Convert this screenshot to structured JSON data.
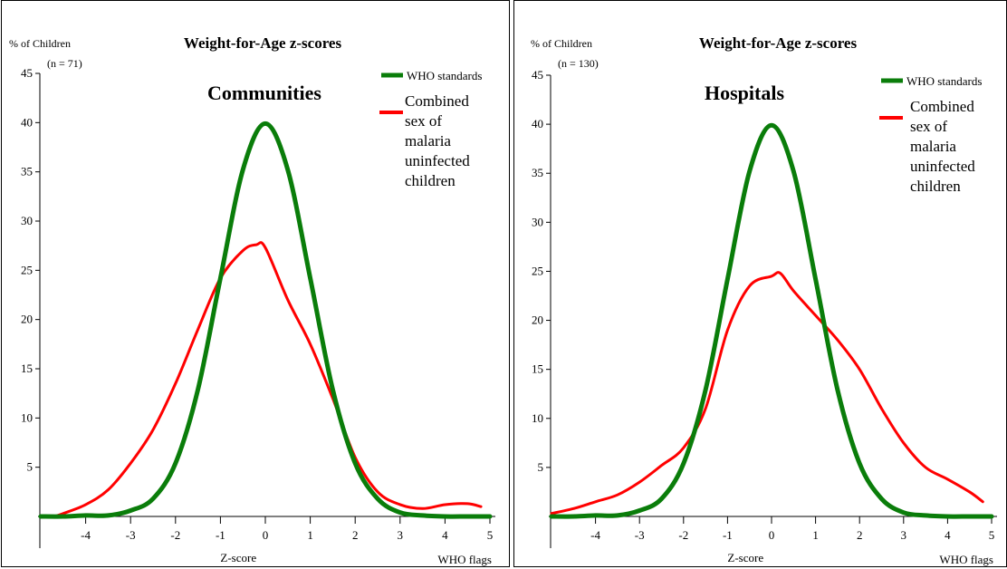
{
  "chart_data": [
    {
      "type": "line",
      "title": "Weight-for-Age z-scores",
      "panel_label": "Communities",
      "y_header": "% of Children",
      "n_label": "(n = 71)",
      "xlabel": "Z-score",
      "x_right_label": "WHO flags",
      "xlim": [
        -5,
        5
      ],
      "ylim": [
        0,
        45
      ],
      "x_ticks": [
        "-4",
        "-3",
        "-2",
        "-1",
        "0",
        "1",
        "2",
        "3",
        "4",
        "5"
      ],
      "y_ticks": [
        "5",
        "10",
        "15",
        "20",
        "25",
        "30",
        "35",
        "40",
        "45"
      ],
      "colors": {
        "who": "#0a7d0a",
        "sample": "#ff0000"
      },
      "legend": {
        "who_label": "WHO standards",
        "sample_label": "Combined sex of malaria uninfected children"
      },
      "series": [
        {
          "name": "WHO standards",
          "x": [
            -5,
            -4.5,
            -4,
            -3.5,
            -3,
            -2.5,
            -2,
            -1.5,
            -1,
            -0.5,
            0,
            0.5,
            1,
            1.5,
            2,
            2.5,
            3,
            3.5,
            4,
            4.5,
            5
          ],
          "y": [
            0,
            0,
            0.1,
            0.1,
            0.6,
            1.8,
            5.4,
            12.9,
            24.2,
            35.2,
            39.9,
            35.2,
            24.2,
            12.9,
            5.4,
            1.8,
            0.4,
            0.1,
            0,
            0,
            0
          ]
        },
        {
          "name": "Combined sex of malaria uninfected children",
          "x": [
            -4.7,
            -4.5,
            -4,
            -3.5,
            -3,
            -2.5,
            -2,
            -1.5,
            -1,
            -0.5,
            -0.2,
            0,
            0.5,
            1,
            1.5,
            2,
            2.5,
            3,
            3.5,
            4,
            4.5,
            4.8
          ],
          "y": [
            0,
            0.3,
            1.2,
            2.7,
            5.4,
            8.8,
            13.5,
            19.0,
            24.2,
            27.0,
            27.6,
            27.3,
            22.0,
            17.5,
            12.0,
            6.0,
            2.5,
            1.2,
            0.8,
            1.2,
            1.3,
            1.0
          ]
        }
      ]
    },
    {
      "type": "line",
      "title": "Weight-for-Age z-scores",
      "panel_label": "Hospitals",
      "y_header": "% of Children",
      "n_label": "(n = 130)",
      "xlabel": "Z-score",
      "x_right_label": "WHO flags",
      "xlim": [
        -5,
        5
      ],
      "ylim": [
        0,
        45
      ],
      "x_ticks": [
        "-4",
        "-3",
        "-2",
        "-1",
        "0",
        "1",
        "2",
        "3",
        "4",
        "5"
      ],
      "y_ticks": [
        "5",
        "10",
        "15",
        "20",
        "25",
        "30",
        "35",
        "40",
        "45"
      ],
      "colors": {
        "who": "#0a7d0a",
        "sample": "#ff0000"
      },
      "legend": {
        "who_label": "WHO standards",
        "sample_label": "Combined sex of malaria uninfected children"
      },
      "series": [
        {
          "name": "WHO standards",
          "x": [
            -5,
            -4.5,
            -4,
            -3.5,
            -3,
            -2.5,
            -2,
            -1.5,
            -1,
            -0.5,
            0,
            0.5,
            1,
            1.5,
            2,
            2.5,
            3,
            3.5,
            4,
            4.5,
            5
          ],
          "y": [
            0,
            0,
            0.1,
            0.1,
            0.6,
            1.8,
            5.4,
            12.9,
            24.2,
            35.2,
            39.9,
            35.2,
            24.2,
            12.9,
            5.4,
            1.8,
            0.4,
            0.1,
            0,
            0,
            0
          ]
        },
        {
          "name": "Combined sex of malaria uninfected children",
          "x": [
            -5,
            -4.5,
            -4,
            -3.5,
            -3,
            -2.5,
            -2,
            -1.5,
            -1,
            -0.5,
            0,
            0.2,
            0.5,
            1,
            1.5,
            2,
            2.5,
            3,
            3.5,
            4,
            4.5,
            4.8
          ],
          "y": [
            0.3,
            0.8,
            1.5,
            2.2,
            3.5,
            5.2,
            7.0,
            11.0,
            19.0,
            23.5,
            24.5,
            24.8,
            23.0,
            20.5,
            18.0,
            15.0,
            11.0,
            7.5,
            5.0,
            3.8,
            2.5,
            1.5
          ]
        }
      ]
    }
  ]
}
